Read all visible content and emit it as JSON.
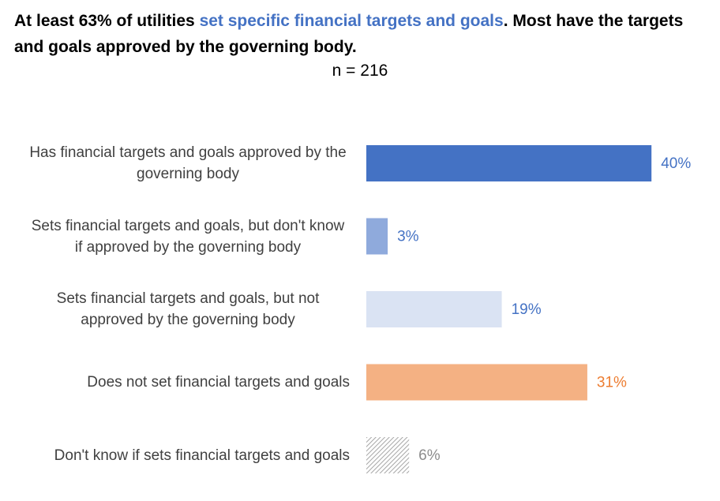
{
  "chart_data": {
    "type": "bar",
    "orientation": "horizontal",
    "title": [
      "At least 63% of utilities ",
      "set specific financial targets and goals",
      ". Most have the targets and goals approved by the governing body."
    ],
    "title_highlight_color": "#4472c4",
    "subtitle": "n = 216",
    "categories": [
      "Has financial targets and goals approved by the governing body",
      "Sets financial targets and goals, but don't know if approved by the governing body",
      "Sets financial targets and goals, but not approved by the governing body",
      "Does not set financial targets and goals",
      "Don't know if sets financial targets and goals"
    ],
    "values": [
      40,
      3,
      19,
      31,
      6
    ],
    "value_labels": [
      "40%",
      "3%",
      "19%",
      "31%",
      "6%"
    ],
    "colors": [
      "#4472c4",
      "#8faadc",
      "#dae3f3",
      "#f4b183",
      "#bfbfbf"
    ],
    "patterns": [
      "solid",
      "solid",
      "solid",
      "solid",
      "hatch"
    ],
    "label_colors": [
      "#4472c4",
      "#4472c4",
      "#4472c4",
      "#ed7d31",
      "#8c8c8c"
    ]
  }
}
